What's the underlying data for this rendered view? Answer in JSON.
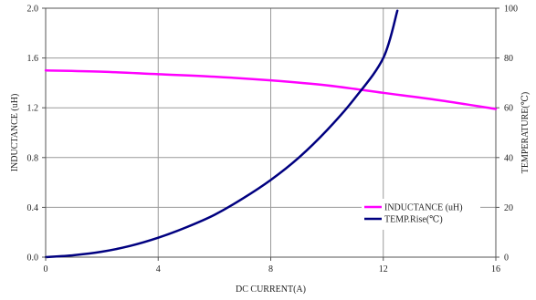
{
  "chart_data": {
    "type": "line",
    "title": "",
    "xlabel": "DC CURRENT(A)",
    "ylabel_left": "INDUCTANCE (uH)",
    "ylabel_right": "TEMPERATURE(℃)",
    "xlim": [
      0,
      16
    ],
    "ylim_left": [
      0,
      2.0
    ],
    "ylim_right": [
      0,
      100
    ],
    "x_ticks": [
      "0",
      "4",
      "8",
      "12",
      "16"
    ],
    "y_left_ticks": [
      "0.0",
      "0.4",
      "0.8",
      "1.2",
      "1.6",
      "2.0"
    ],
    "y_right_ticks": [
      "0",
      "20",
      "40",
      "60",
      "80",
      "100"
    ],
    "grid": true,
    "legend_position": "lower-right",
    "series": [
      {
        "name": "INDUCTANCE (uH)",
        "axis": "left",
        "color": "#ff00ff",
        "x": [
          0,
          2,
          4,
          6,
          8,
          10,
          12,
          14,
          16
        ],
        "y": [
          1.5,
          1.49,
          1.47,
          1.45,
          1.42,
          1.38,
          1.32,
          1.26,
          1.19
        ]
      },
      {
        "name": "TEMP.Rise(℃)",
        "axis": "right",
        "color": "#000080",
        "x": [
          0,
          1,
          2,
          3,
          4,
          5,
          6,
          7,
          8,
          9,
          10,
          11,
          12,
          12.5
        ],
        "y": [
          0,
          0.8,
          2.2,
          4.5,
          7.8,
          12,
          17,
          23.5,
          31,
          40,
          51,
          64,
          80,
          99
        ]
      }
    ]
  }
}
